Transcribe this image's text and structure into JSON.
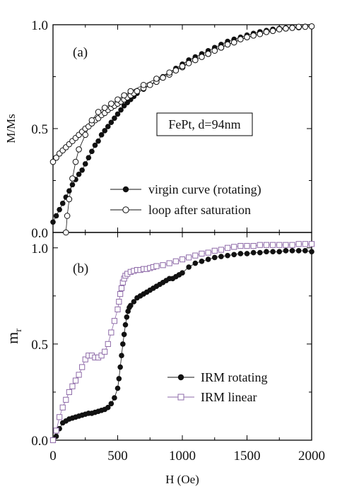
{
  "figure": {
    "x_axis_label": "H (Oe)",
    "x_ticks": [
      "0",
      "500",
      "1000",
      "1500",
      "2000"
    ]
  },
  "colors": {
    "axis": "#000000",
    "filled_marker": "#111111",
    "open_marker_stroke": "#111111",
    "linear_series": "#8e6aa8"
  },
  "chart_data": [
    {
      "type": "scatter",
      "panel_label": "(a)",
      "annotation": "FePt, d=94nm",
      "xlabel": "",
      "ylabel": "M/Ms",
      "xlim": [
        0,
        2000
      ],
      "ylim": [
        0,
        1
      ],
      "y_ticks": [
        "0.0",
        "0.5",
        "1.0"
      ],
      "legend_position": "bottom-right",
      "series": [
        {
          "name": "virgin curve (rotating)",
          "marker": "filled-circle",
          "x": [
            0,
            25,
            50,
            75,
            100,
            125,
            150,
            175,
            200,
            225,
            250,
            275,
            300,
            325,
            350,
            375,
            400,
            425,
            450,
            475,
            500,
            525,
            550,
            575,
            600,
            625,
            650,
            700,
            750,
            800,
            850,
            900,
            950,
            1000,
            1050,
            1100,
            1150,
            1200,
            1250,
            1300,
            1350,
            1400,
            1450,
            1500,
            1550,
            1600,
            1650,
            1700,
            1750,
            1800,
            1850,
            1900,
            1950,
            2000
          ],
          "y": [
            0.05,
            0.08,
            0.11,
            0.14,
            0.17,
            0.2,
            0.23,
            0.255,
            0.28,
            0.3,
            0.33,
            0.36,
            0.39,
            0.42,
            0.44,
            0.47,
            0.49,
            0.51,
            0.53,
            0.55,
            0.57,
            0.59,
            0.61,
            0.625,
            0.64,
            0.655,
            0.67,
            0.69,
            0.71,
            0.73,
            0.75,
            0.77,
            0.79,
            0.81,
            0.83,
            0.845,
            0.86,
            0.875,
            0.89,
            0.905,
            0.92,
            0.93,
            0.94,
            0.95,
            0.958,
            0.966,
            0.972,
            0.978,
            0.982,
            0.985,
            0.988,
            0.99,
            0.992,
            0.993
          ]
        },
        {
          "name": "loop after saturation",
          "marker": "open-circle",
          "x": [
            0,
            25,
            50,
            75,
            100,
            125,
            150,
            175,
            200,
            225,
            250,
            275,
            300,
            325,
            350,
            375,
            400,
            425,
            450,
            475,
            500,
            525,
            550,
            575,
            600,
            625,
            650,
            700,
            750,
            800,
            850,
            900,
            950,
            1000,
            1050,
            1100,
            1150,
            1200,
            1250,
            1300,
            1350,
            1400,
            1450,
            1500,
            1550,
            1600,
            1650,
            1700,
            1750,
            1800,
            1850,
            1900,
            1950,
            2000,
            1900,
            1800,
            1700,
            1600,
            1500,
            1400,
            1300,
            1200,
            1100,
            1000,
            900,
            800,
            700,
            600,
            550,
            500,
            450,
            400,
            350,
            300,
            250,
            200,
            175,
            150,
            125,
            110,
            100
          ],
          "y": [
            0.34,
            0.36,
            0.38,
            0.395,
            0.41,
            0.425,
            0.44,
            0.455,
            0.47,
            0.485,
            0.5,
            0.51,
            0.525,
            0.54,
            0.55,
            0.565,
            0.575,
            0.59,
            0.6,
            0.61,
            0.62,
            0.63,
            0.64,
            0.65,
            0.66,
            0.67,
            0.68,
            0.695,
            0.71,
            0.725,
            0.745,
            0.76,
            0.78,
            0.795,
            0.815,
            0.83,
            0.845,
            0.86,
            0.875,
            0.89,
            0.905,
            0.915,
            0.93,
            0.94,
            0.948,
            0.956,
            0.965,
            0.972,
            0.978,
            0.982,
            0.985,
            0.988,
            0.99,
            0.992,
            0.99,
            0.982,
            0.97,
            0.955,
            0.94,
            0.915,
            0.89,
            0.86,
            0.83,
            0.8,
            0.77,
            0.74,
            0.71,
            0.68,
            0.66,
            0.64,
            0.62,
            0.6,
            0.58,
            0.54,
            0.47,
            0.4,
            0.34,
            0.26,
            0.16,
            0.08,
            0.0
          ]
        }
      ]
    },
    {
      "type": "scatter",
      "panel_label": "(b)",
      "xlabel": "H (Oe)",
      "ylabel": "m_r",
      "ylabel_main": "m",
      "ylabel_sub": "r",
      "xlim": [
        0,
        2000
      ],
      "ylim": [
        0,
        1.08
      ],
      "x_ticks": [
        "0",
        "500",
        "1000",
        "1500",
        "2000"
      ],
      "y_ticks": [
        "0.0",
        "0.5",
        "1.0"
      ],
      "legend_position": "bottom-right",
      "series": [
        {
          "name": "IRM rotating",
          "marker": "filled-circle",
          "x": [
            0,
            25,
            50,
            75,
            100,
            125,
            150,
            175,
            200,
            225,
            250,
            275,
            300,
            325,
            350,
            375,
            400,
            425,
            450,
            475,
            500,
            510,
            520,
            530,
            540,
            550,
            560,
            570,
            580,
            590,
            600,
            625,
            650,
            675,
            700,
            725,
            750,
            775,
            800,
            825,
            850,
            875,
            900,
            925,
            950,
            975,
            1000,
            1050,
            1100,
            1150,
            1200,
            1250,
            1300,
            1350,
            1400,
            1450,
            1500,
            1550,
            1600,
            1650,
            1700,
            1750,
            1800,
            1850,
            1900,
            1950,
            2000
          ],
          "y": [
            0.0,
            0.02,
            0.06,
            0.09,
            0.1,
            0.11,
            0.115,
            0.12,
            0.125,
            0.13,
            0.135,
            0.14,
            0.14,
            0.145,
            0.15,
            0.155,
            0.16,
            0.17,
            0.19,
            0.22,
            0.27,
            0.32,
            0.38,
            0.44,
            0.5,
            0.55,
            0.6,
            0.64,
            0.67,
            0.69,
            0.7,
            0.72,
            0.74,
            0.75,
            0.76,
            0.77,
            0.78,
            0.79,
            0.8,
            0.81,
            0.82,
            0.83,
            0.84,
            0.84,
            0.85,
            0.86,
            0.87,
            0.9,
            0.92,
            0.93,
            0.94,
            0.95,
            0.955,
            0.96,
            0.965,
            0.97,
            0.97,
            0.975,
            0.975,
            0.98,
            0.98,
            0.98,
            0.985,
            0.985,
            0.985,
            0.985,
            0.98
          ]
        },
        {
          "name": "IRM linear",
          "marker": "open-square",
          "x": [
            0,
            25,
            50,
            75,
            100,
            125,
            150,
            175,
            200,
            225,
            250,
            275,
            300,
            325,
            350,
            375,
            400,
            425,
            450,
            475,
            500,
            510,
            520,
            530,
            540,
            550,
            560,
            575,
            600,
            625,
            650,
            675,
            700,
            725,
            750,
            775,
            800,
            850,
            900,
            950,
            1000,
            1050,
            1100,
            1150,
            1200,
            1250,
            1300,
            1350,
            1400,
            1450,
            1500,
            1550,
            1600,
            1650,
            1700,
            1750,
            1800,
            1850,
            1900,
            1950,
            2000
          ],
          "y": [
            0.0,
            0.05,
            0.12,
            0.17,
            0.21,
            0.25,
            0.28,
            0.31,
            0.34,
            0.38,
            0.42,
            0.44,
            0.44,
            0.43,
            0.43,
            0.44,
            0.46,
            0.5,
            0.56,
            0.62,
            0.68,
            0.72,
            0.76,
            0.79,
            0.82,
            0.84,
            0.855,
            0.865,
            0.875,
            0.88,
            0.885,
            0.885,
            0.89,
            0.89,
            0.895,
            0.9,
            0.905,
            0.91,
            0.92,
            0.93,
            0.94,
            0.95,
            0.96,
            0.97,
            0.975,
            0.985,
            0.99,
            1.0,
            1.005,
            1.01,
            1.01,
            1.01,
            1.015,
            1.015,
            1.015,
            1.015,
            1.015,
            1.015,
            1.02,
            1.02,
            1.02
          ]
        }
      ]
    }
  ]
}
